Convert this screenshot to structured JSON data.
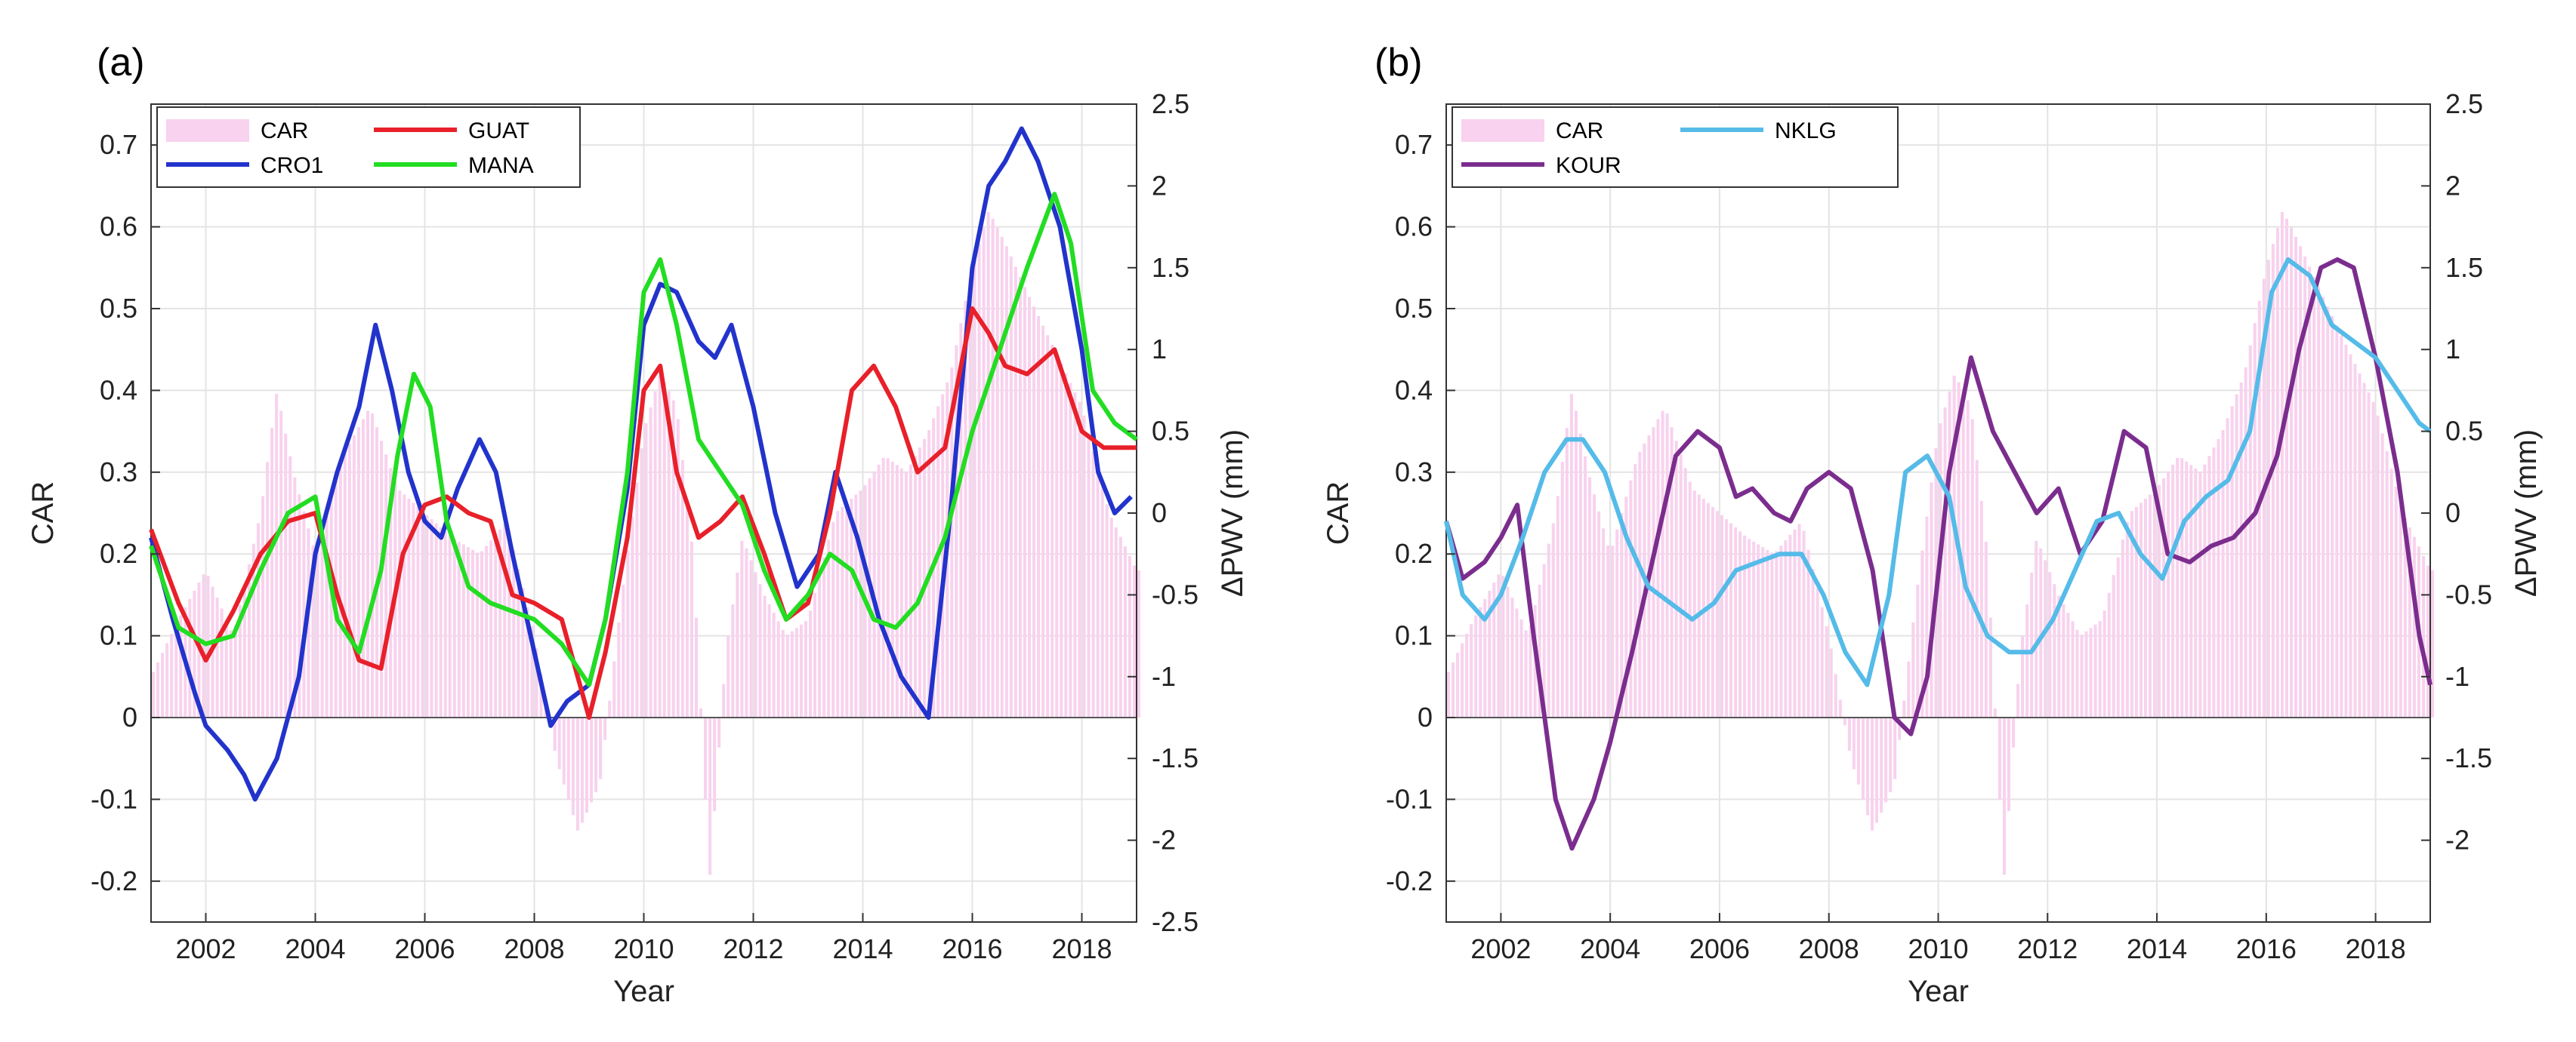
{
  "chart_data": [
    {
      "type": "line",
      "panel_label": "(a)",
      "xlabel": "Year",
      "ylabel": "CAR",
      "y2label": "ΔPWV (mm)",
      "xlim": [
        2001,
        2019
      ],
      "ylim": [
        -0.25,
        0.75
      ],
      "y2lim": [
        -2.5,
        2.5
      ],
      "xticks": [
        2002,
        2004,
        2006,
        2008,
        2010,
        2012,
        2014,
        2016,
        2018
      ],
      "yticks": [
        -0.2,
        -0.1,
        0,
        0.1,
        0.2,
        0.3,
        0.4,
        0.5,
        0.6,
        0.7
      ],
      "y2ticks": [
        -2.5,
        -2,
        -1.5,
        -1,
        -0.5,
        0,
        0.5,
        1,
        1.5,
        2,
        2.5
      ],
      "grid": true,
      "legend_position": "top-left",
      "legend_columns": 2,
      "legend": [
        "CAR",
        "GUAT",
        "CRO1",
        "MANA"
      ],
      "colors": {
        "CAR": "#f8d2ee",
        "CRO1": "#2233cc",
        "GUAT": "#e8202a",
        "MANA": "#22dd22"
      },
      "bars": {
        "name": "CAR",
        "axis": "left",
        "x": [
          2001.0,
          2001.5,
          2002.0,
          2002.5,
          2003.0,
          2003.3,
          2003.6,
          2004.0,
          2004.5,
          2005.0,
          2005.5,
          2006.0,
          2006.5,
          2007.0,
          2007.5,
          2008.0,
          2008.4,
          2008.8,
          2009.2,
          2009.6,
          2010.0,
          2010.3,
          2010.6,
          2010.9,
          2011.2,
          2011.5,
          2011.8,
          2012.2,
          2012.6,
          2013.0,
          2013.5,
          2014.0,
          2014.4,
          2014.8,
          2015.2,
          2015.6,
          2016.0,
          2016.3,
          2016.6,
          2017.0,
          2017.5,
          2018.0,
          2018.5,
          2019.0
        ],
        "values": [
          0.05,
          0.12,
          0.18,
          0.1,
          0.25,
          0.4,
          0.3,
          0.2,
          0.32,
          0.38,
          0.28,
          0.25,
          0.22,
          0.2,
          0.24,
          0.1,
          -0.05,
          -0.14,
          -0.08,
          0.15,
          0.35,
          0.42,
          0.38,
          0.2,
          -0.2,
          0.08,
          0.22,
          0.15,
          0.1,
          0.12,
          0.25,
          0.28,
          0.32,
          0.3,
          0.35,
          0.42,
          0.55,
          0.62,
          0.58,
          0.52,
          0.45,
          0.38,
          0.25,
          0.18
        ]
      },
      "series": [
        {
          "name": "CRO1",
          "axis": "left",
          "x": [
            2001.0,
            2001.4,
            2001.8,
            2002.0,
            2002.4,
            2002.7,
            2002.9,
            2003.3,
            2003.7,
            2004.0,
            2004.4,
            2004.8,
            2005.1,
            2005.4,
            2005.7,
            2006.0,
            2006.3,
            2006.6,
            2007.0,
            2007.3,
            2007.6,
            2008.0,
            2008.3,
            2008.6,
            2009.0,
            2009.3,
            2009.7,
            2010.0,
            2010.3,
            2010.6,
            2011.0,
            2011.3,
            2011.6,
            2012.0,
            2012.4,
            2012.8,
            2013.2,
            2013.5,
            2013.9,
            2014.3,
            2014.7,
            2015.2,
            2015.6,
            2016.0,
            2016.3,
            2016.6,
            2016.9,
            2017.2,
            2017.6,
            2018.0,
            2018.3,
            2018.6,
            2018.9
          ],
          "y": [
            0.22,
            0.12,
            0.03,
            -0.01,
            -0.04,
            -0.07,
            -0.1,
            -0.05,
            0.05,
            0.2,
            0.3,
            0.38,
            0.48,
            0.4,
            0.3,
            0.24,
            0.22,
            0.28,
            0.34,
            0.3,
            0.2,
            0.08,
            -0.01,
            0.02,
            0.04,
            0.12,
            0.28,
            0.48,
            0.53,
            0.52,
            0.46,
            0.44,
            0.48,
            0.38,
            0.25,
            0.16,
            0.2,
            0.3,
            0.22,
            0.12,
            0.05,
            0.0,
            0.25,
            0.55,
            0.65,
            0.68,
            0.72,
            0.68,
            0.6,
            0.45,
            0.3,
            0.25,
            0.27
          ]
        },
        {
          "name": "GUAT",
          "axis": "left",
          "x": [
            2001.0,
            2001.5,
            2002.0,
            2002.5,
            2003.0,
            2003.5,
            2004.0,
            2004.4,
            2004.8,
            2005.2,
            2005.6,
            2006.0,
            2006.4,
            2006.8,
            2007.2,
            2007.6,
            2008.0,
            2008.5,
            2009.0,
            2009.3,
            2009.7,
            2010.0,
            2010.3,
            2010.6,
            2011.0,
            2011.4,
            2011.8,
            2012.2,
            2012.6,
            2013.0,
            2013.4,
            2013.8,
            2014.2,
            2014.6,
            2015.0,
            2015.5,
            2016.0,
            2016.3,
            2016.6,
            2017.0,
            2017.5,
            2018.0,
            2018.4,
            2019.0
          ],
          "y": [
            0.23,
            0.14,
            0.07,
            0.13,
            0.2,
            0.24,
            0.25,
            0.15,
            0.07,
            0.06,
            0.2,
            0.26,
            0.27,
            0.25,
            0.24,
            0.15,
            0.14,
            0.12,
            0.0,
            0.08,
            0.22,
            0.4,
            0.43,
            0.3,
            0.22,
            0.24,
            0.27,
            0.2,
            0.12,
            0.14,
            0.25,
            0.4,
            0.43,
            0.38,
            0.3,
            0.33,
            0.5,
            0.47,
            0.43,
            0.42,
            0.45,
            0.35,
            0.33,
            0.33
          ]
        },
        {
          "name": "MANA",
          "axis": "left",
          "x": [
            2001.0,
            2001.5,
            2002.0,
            2002.5,
            2003.0,
            2003.5,
            2004.0,
            2004.4,
            2004.8,
            2005.2,
            2005.5,
            2005.8,
            2006.1,
            2006.4,
            2006.8,
            2007.2,
            2007.6,
            2008.0,
            2008.5,
            2009.0,
            2009.3,
            2009.7,
            2010.0,
            2010.3,
            2010.6,
            2011.0,
            2011.4,
            2011.8,
            2012.2,
            2012.6,
            2013.0,
            2013.4,
            2013.8,
            2014.2,
            2014.6,
            2015.0,
            2015.5,
            2016.0,
            2016.5,
            2017.0,
            2017.5,
            2017.8,
            2018.2,
            2018.6,
            2019.0
          ],
          "y": [
            0.21,
            0.11,
            0.09,
            0.1,
            0.18,
            0.25,
            0.27,
            0.12,
            0.08,
            0.18,
            0.32,
            0.42,
            0.38,
            0.24,
            0.16,
            0.14,
            0.13,
            0.12,
            0.09,
            0.04,
            0.12,
            0.3,
            0.52,
            0.56,
            0.48,
            0.34,
            0.3,
            0.26,
            0.18,
            0.12,
            0.15,
            0.2,
            0.18,
            0.12,
            0.11,
            0.14,
            0.22,
            0.35,
            0.45,
            0.55,
            0.64,
            0.58,
            0.4,
            0.36,
            0.34
          ]
        }
      ]
    },
    {
      "type": "line",
      "panel_label": "(b)",
      "xlabel": "Year",
      "ylabel": "CAR",
      "y2label": "ΔPWV (mm)",
      "xlim": [
        2001,
        2019
      ],
      "ylim": [
        -0.25,
        0.75
      ],
      "y2lim": [
        -2.5,
        2.5
      ],
      "xticks": [
        2002,
        2004,
        2006,
        2008,
        2010,
        2012,
        2014,
        2016,
        2018
      ],
      "yticks": [
        -0.2,
        -0.1,
        0,
        0.1,
        0.2,
        0.3,
        0.4,
        0.5,
        0.6,
        0.7
      ],
      "y2ticks": [
        -2,
        -1.5,
        -1,
        -0.5,
        0,
        0.5,
        1,
        1.5,
        2,
        2.5
      ],
      "grid": true,
      "legend_position": "top-left",
      "legend_columns": 2,
      "legend": [
        "CAR",
        "NKLG",
        "KOUR"
      ],
      "colors": {
        "CAR": "#f8d2ee",
        "KOUR": "#7b2d8e",
        "NKLG": "#55bbe8"
      },
      "bars": {
        "name": "CAR",
        "axis": "left",
        "x": [
          2001.0,
          2001.5,
          2002.0,
          2002.5,
          2003.0,
          2003.3,
          2003.6,
          2004.0,
          2004.5,
          2005.0,
          2005.5,
          2006.0,
          2006.5,
          2007.0,
          2007.5,
          2008.0,
          2008.4,
          2008.8,
          2009.2,
          2009.6,
          2010.0,
          2010.3,
          2010.6,
          2010.9,
          2011.2,
          2011.5,
          2011.8,
          2012.2,
          2012.6,
          2013.0,
          2013.5,
          2014.0,
          2014.4,
          2014.8,
          2015.2,
          2015.6,
          2016.0,
          2016.3,
          2016.6,
          2017.0,
          2017.5,
          2018.0,
          2018.5,
          2019.0
        ],
        "values": [
          0.05,
          0.12,
          0.18,
          0.1,
          0.25,
          0.4,
          0.3,
          0.2,
          0.32,
          0.38,
          0.28,
          0.25,
          0.22,
          0.2,
          0.24,
          0.1,
          -0.05,
          -0.14,
          -0.08,
          0.15,
          0.35,
          0.42,
          0.38,
          0.2,
          -0.2,
          0.08,
          0.22,
          0.15,
          0.1,
          0.12,
          0.25,
          0.28,
          0.32,
          0.3,
          0.35,
          0.42,
          0.55,
          0.62,
          0.58,
          0.52,
          0.45,
          0.38,
          0.25,
          0.18
        ]
      },
      "series": [
        {
          "name": "KOUR",
          "axis": "left",
          "x": [
            2001.0,
            2001.3,
            2001.7,
            2002.0,
            2002.3,
            2002.6,
            2003.0,
            2003.3,
            2003.7,
            2004.0,
            2004.4,
            2004.8,
            2005.2,
            2005.6,
            2006.0,
            2006.3,
            2006.6,
            2007.0,
            2007.3,
            2007.6,
            2008.0,
            2008.4,
            2008.8,
            2009.2,
            2009.5,
            2009.8,
            2010.2,
            2010.6,
            2011.0,
            2011.4,
            2011.8,
            2012.2,
            2012.6,
            2013.0,
            2013.4,
            2013.8,
            2014.2,
            2014.6,
            2015.0,
            2015.4,
            2015.8,
            2016.2,
            2016.6,
            2017.0,
            2017.3,
            2017.6,
            2018.0,
            2018.4,
            2018.8,
            2019.0
          ],
          "y": [
            0.24,
            0.17,
            0.19,
            0.22,
            0.26,
            0.1,
            -0.1,
            -0.16,
            -0.1,
            -0.03,
            0.08,
            0.2,
            0.32,
            0.35,
            0.33,
            0.27,
            0.28,
            0.25,
            0.24,
            0.28,
            0.3,
            0.28,
            0.18,
            0.0,
            -0.02,
            0.05,
            0.3,
            0.44,
            0.35,
            0.3,
            0.25,
            0.28,
            0.2,
            0.24,
            0.35,
            0.33,
            0.2,
            0.19,
            0.21,
            0.22,
            0.25,
            0.32,
            0.45,
            0.55,
            0.56,
            0.55,
            0.44,
            0.3,
            0.1,
            0.04
          ]
        },
        {
          "name": "NKLG",
          "axis": "left",
          "x": [
            2001.0,
            2001.3,
            2001.7,
            2002.0,
            2002.4,
            2002.8,
            2003.2,
            2003.5,
            2003.9,
            2004.3,
            2004.7,
            2005.1,
            2005.5,
            2005.9,
            2006.3,
            2006.7,
            2007.1,
            2007.5,
            2007.9,
            2008.3,
            2008.7,
            2009.1,
            2009.4,
            2009.8,
            2010.2,
            2010.5,
            2010.9,
            2011.3,
            2011.7,
            2012.1,
            2012.5,
            2012.9,
            2013.3,
            2013.7,
            2014.1,
            2014.5,
            2014.9,
            2015.3,
            2015.7,
            2016.1,
            2016.4,
            2016.8,
            2017.2,
            2017.6,
            2018.0,
            2018.4,
            2018.8,
            2019.0
          ],
          "y": [
            0.24,
            0.15,
            0.12,
            0.15,
            0.22,
            0.3,
            0.34,
            0.34,
            0.3,
            0.22,
            0.16,
            0.14,
            0.12,
            0.14,
            0.18,
            0.19,
            0.2,
            0.2,
            0.15,
            0.08,
            0.04,
            0.15,
            0.3,
            0.32,
            0.27,
            0.16,
            0.1,
            0.08,
            0.08,
            0.12,
            0.18,
            0.24,
            0.25,
            0.2,
            0.17,
            0.24,
            0.27,
            0.29,
            0.35,
            0.52,
            0.56,
            0.54,
            0.48,
            0.46,
            0.44,
            0.4,
            0.36,
            0.35
          ]
        }
      ]
    }
  ]
}
